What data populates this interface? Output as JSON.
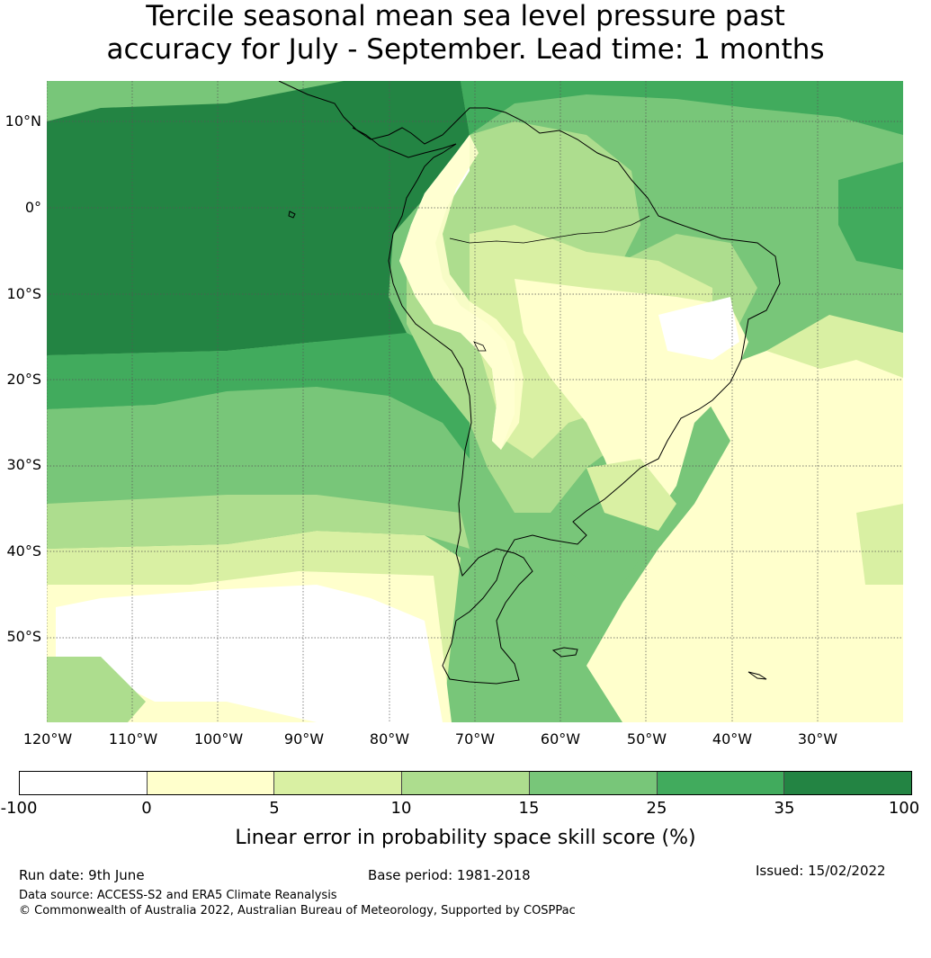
{
  "title": {
    "line1": "Tercile seasonal mean sea level pressure past",
    "line2": "accuracy for July - September. Lead time: 1 months"
  },
  "map": {
    "lat_labels": [
      "10°N",
      "0°",
      "10°S",
      "20°S",
      "30°S",
      "40°S",
      "50°S"
    ],
    "lon_labels": [
      "120°W",
      "110°W",
      "100°W",
      "90°W",
      "80°W",
      "70°W",
      "60°W",
      "50°W",
      "40°W",
      "30°W"
    ],
    "coastline_color": "#000000",
    "gridline_color": "#555555"
  },
  "legend": {
    "ticks": [
      "-100",
      "0",
      "5",
      "10",
      "15",
      "25",
      "35",
      "100"
    ],
    "colors": [
      "#ffffff",
      "#ffffcc",
      "#d9f0a3",
      "#addd8e",
      "#78c679",
      "#41ab5d",
      "#238443"
    ],
    "label": "Linear error in probability space skill score (%)"
  },
  "footer": {
    "run_date": "Run date: 9th June",
    "base_period": "Base period: 1981-2018",
    "issued": "Issued: 15/02/2022",
    "data_source": "Data source: ACCESS-S2 and ERA5 Climate Reanalysis",
    "copyright": "© Commonwealth of Australia 2022, Australian Bureau of Meteorology, Supported by COSPPac"
  }
}
